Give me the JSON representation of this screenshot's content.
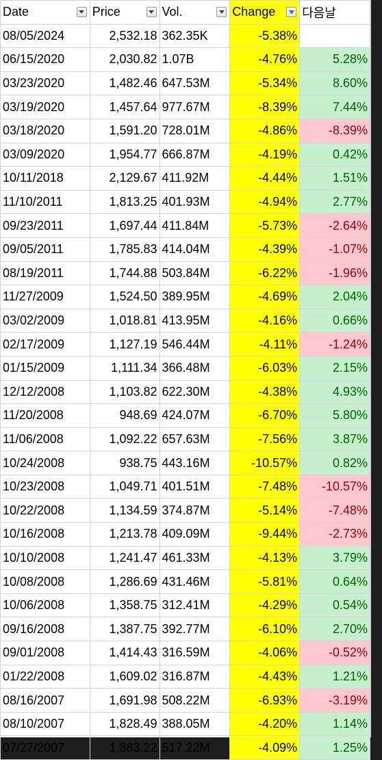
{
  "headers": {
    "date": "Date",
    "price": "Price",
    "vol": "Vol.",
    "change": "Change",
    "next": "다음날"
  },
  "colors": {
    "change_fill": "#ffff00",
    "positive_fill": "#c6efce",
    "positive_text": "#006100",
    "negative_fill": "#ffc7ce",
    "negative_text": "#9c0006"
  },
  "rows": [
    {
      "date": "08/05/2024",
      "price": "2,532.18",
      "vol": "362.35K",
      "change": "-5.38%",
      "next": ""
    },
    {
      "date": "06/15/2020",
      "price": "2,030.82",
      "vol": "1.07B",
      "change": "-4.76%",
      "next": "5.28%"
    },
    {
      "date": "03/23/2020",
      "price": "1,482.46",
      "vol": "647.53M",
      "change": "-5.34%",
      "next": "8.60%"
    },
    {
      "date": "03/19/2020",
      "price": "1,457.64",
      "vol": "977.67M",
      "change": "-8.39%",
      "next": "7.44%"
    },
    {
      "date": "03/18/2020",
      "price": "1,591.20",
      "vol": "728.01M",
      "change": "-4.86%",
      "next": "-8.39%"
    },
    {
      "date": "03/09/2020",
      "price": "1,954.77",
      "vol": "666.87M",
      "change": "-4.19%",
      "next": "0.42%"
    },
    {
      "date": "10/11/2018",
      "price": "2,129.67",
      "vol": "411.92M",
      "change": "-4.44%",
      "next": "1.51%"
    },
    {
      "date": "11/10/2011",
      "price": "1,813.25",
      "vol": "401.93M",
      "change": "-4.94%",
      "next": "2.77%"
    },
    {
      "date": "09/23/2011",
      "price": "1,697.44",
      "vol": "411.84M",
      "change": "-5.73%",
      "next": "-2.64%"
    },
    {
      "date": "09/05/2011",
      "price": "1,785.83",
      "vol": "414.04M",
      "change": "-4.39%",
      "next": "-1.07%"
    },
    {
      "date": "08/19/2011",
      "price": "1,744.88",
      "vol": "503.84M",
      "change": "-6.22%",
      "next": "-1.96%"
    },
    {
      "date": "11/27/2009",
      "price": "1,524.50",
      "vol": "389.95M",
      "change": "-4.69%",
      "next": "2.04%"
    },
    {
      "date": "03/02/2009",
      "price": "1,018.81",
      "vol": "413.95M",
      "change": "-4.16%",
      "next": "0.66%"
    },
    {
      "date": "02/17/2009",
      "price": "1,127.19",
      "vol": "546.44M",
      "change": "-4.11%",
      "next": "-1.24%"
    },
    {
      "date": "01/15/2009",
      "price": "1,111.34",
      "vol": "366.48M",
      "change": "-6.03%",
      "next": "2.15%"
    },
    {
      "date": "12/12/2008",
      "price": "1,103.82",
      "vol": "622.30M",
      "change": "-4.38%",
      "next": "4.93%"
    },
    {
      "date": "11/20/2008",
      "price": "948.69",
      "vol": "424.07M",
      "change": "-6.70%",
      "next": "5.80%"
    },
    {
      "date": "11/06/2008",
      "price": "1,092.22",
      "vol": "657.63M",
      "change": "-7.56%",
      "next": "3.87%"
    },
    {
      "date": "10/24/2008",
      "price": "938.75",
      "vol": "443.16M",
      "change": "-10.57%",
      "next": "0.82%"
    },
    {
      "date": "10/23/2008",
      "price": "1,049.71",
      "vol": "401.51M",
      "change": "-7.48%",
      "next": "-10.57%"
    },
    {
      "date": "10/22/2008",
      "price": "1,134.59",
      "vol": "374.87M",
      "change": "-5.14%",
      "next": "-7.48%"
    },
    {
      "date": "10/16/2008",
      "price": "1,213.78",
      "vol": "409.09M",
      "change": "-9.44%",
      "next": "-2.73%"
    },
    {
      "date": "10/10/2008",
      "price": "1,241.47",
      "vol": "461.33M",
      "change": "-4.13%",
      "next": "3.79%"
    },
    {
      "date": "10/08/2008",
      "price": "1,286.69",
      "vol": "431.46M",
      "change": "-5.81%",
      "next": "0.64%"
    },
    {
      "date": "10/06/2008",
      "price": "1,358.75",
      "vol": "312.41M",
      "change": "-4.29%",
      "next": "0.54%"
    },
    {
      "date": "09/16/2008",
      "price": "1,387.75",
      "vol": "392.77M",
      "change": "-6.10%",
      "next": "2.70%"
    },
    {
      "date": "09/01/2008",
      "price": "1,414.43",
      "vol": "316.59M",
      "change": "-4.06%",
      "next": "-0.52%"
    },
    {
      "date": "01/22/2008",
      "price": "1,609.02",
      "vol": "316.87M",
      "change": "-4.43%",
      "next": "1.21%"
    },
    {
      "date": "08/16/2007",
      "price": "1,691.98",
      "vol": "508.22M",
      "change": "-6.93%",
      "next": "-3.19%"
    },
    {
      "date": "08/10/2007",
      "price": "1,828.49",
      "vol": "388.05M",
      "change": "-4.20%",
      "next": "1.14%"
    },
    {
      "date": "07/27/2007",
      "price": "1,883.22",
      "vol": "517.22M",
      "change": "-4.09%",
      "next": "1.25%"
    }
  ]
}
